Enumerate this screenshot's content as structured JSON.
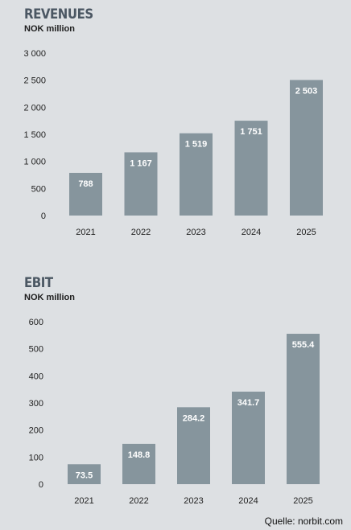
{
  "chart_data": [
    {
      "type": "bar",
      "title": "REVENUES",
      "ylabel": "NOK million",
      "categories": [
        "2021",
        "2022",
        "2023",
        "2024",
        "2025"
      ],
      "values": [
        788,
        1167,
        1519,
        1751,
        2503
      ],
      "value_labels": [
        "788",
        "1 167",
        "1 519",
        "1 751",
        "2 503"
      ],
      "yticks": [
        0,
        500,
        1000,
        1500,
        2000,
        2500,
        3000
      ],
      "ytick_labels": [
        "0",
        "500",
        "1 000",
        "1 500",
        "2 000",
        "2 500",
        "3 000"
      ],
      "ylim": [
        0,
        3000
      ],
      "grid": false,
      "bar_color": "#86959d"
    },
    {
      "type": "bar",
      "title": "EBIT",
      "ylabel": "NOK million",
      "categories": [
        "2021",
        "2022",
        "2023",
        "2024",
        "2025"
      ],
      "values": [
        73.5,
        148.8,
        284.2,
        341.7,
        555.4
      ],
      "value_labels": [
        "73.5",
        "148.8",
        "284.2",
        "341.7",
        "555.4"
      ],
      "yticks": [
        0,
        100,
        200,
        300,
        400,
        500,
        600
      ],
      "ytick_labels": [
        "0",
        "100",
        "200",
        "300",
        "400",
        "500",
        "600"
      ],
      "ylim": [
        0,
        600
      ],
      "grid": false,
      "bar_color": "#86959d"
    }
  ],
  "footer": {
    "source": "Quelle: norbit.com"
  }
}
